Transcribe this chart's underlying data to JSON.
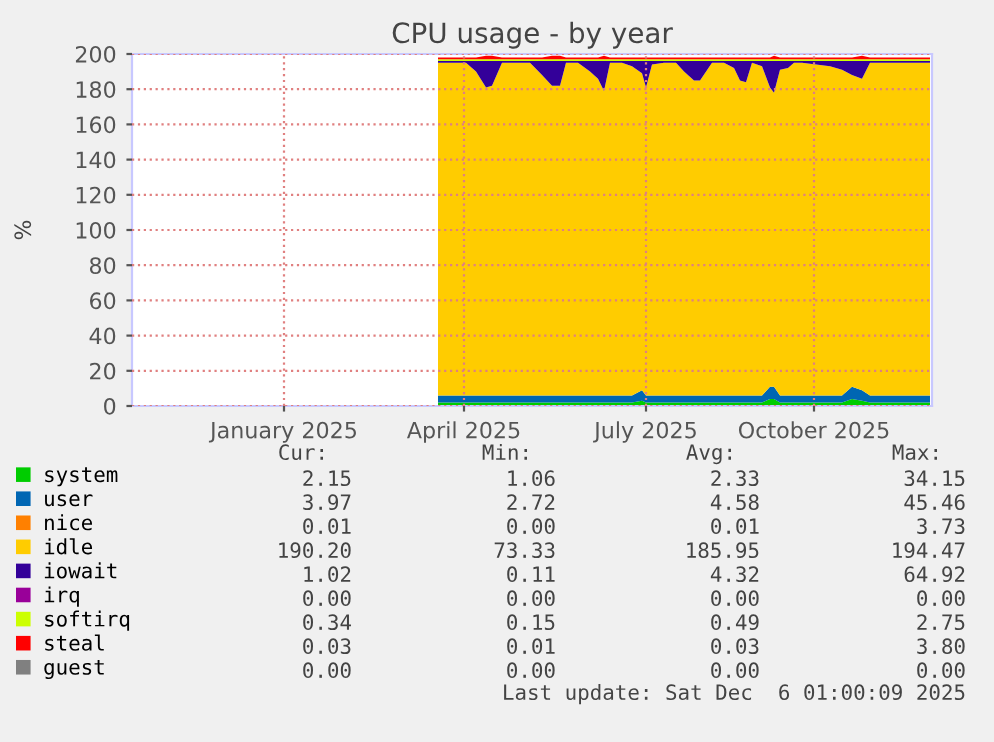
{
  "chart_data": {
    "type": "area",
    "stacked": true,
    "title": "CPU usage - by year",
    "ylabel": "%",
    "x": [
      "2025-04-03",
      "2025-04-10",
      "2025-04-17",
      "2025-04-22",
      "2025-04-27",
      "2025-04-30",
      "2025-05-05",
      "2025-05-12",
      "2025-05-19",
      "2025-05-25",
      "2025-05-30",
      "2025-06-03",
      "2025-06-06",
      "2025-06-12",
      "2025-06-18",
      "2025-06-22",
      "2025-06-25",
      "2025-06-28",
      "2025-07-04",
      "2025-07-09",
      "2025-07-14",
      "2025-07-16",
      "2025-07-19",
      "2025-07-25",
      "2025-07-31",
      "2025-08-04",
      "2025-08-09",
      "2025-08-12",
      "2025-08-18",
      "2025-08-24",
      "2025-08-29",
      "2025-09-01",
      "2025-09-04",
      "2025-09-07",
      "2025-09-12",
      "2025-09-16",
      "2025-09-18",
      "2025-09-21",
      "2025-09-25",
      "2025-09-28",
      "2025-10-02",
      "2025-10-09",
      "2025-10-16",
      "2025-10-22",
      "2025-10-27",
      "2025-11-01",
      "2025-11-05",
      "2025-11-10",
      "2025-11-17",
      "2025-11-24",
      "2025-12-01",
      "2025-12-05"
    ],
    "series": [
      {
        "name": "system",
        "color": "#00cc00",
        "values": [
          2,
          2,
          2,
          2,
          2,
          2,
          2,
          2,
          2,
          2,
          2,
          2,
          2,
          2,
          2,
          2,
          2,
          2,
          2,
          2,
          3,
          2,
          2,
          2,
          2,
          2,
          2,
          2,
          2,
          2,
          2,
          2,
          2,
          2,
          2,
          4,
          4,
          2,
          2,
          2,
          2,
          2,
          2,
          2,
          4,
          3,
          2,
          2,
          2,
          2,
          2,
          2
        ]
      },
      {
        "name": "user",
        "color": "#0066b3",
        "values": [
          4,
          4,
          4,
          4,
          4,
          4,
          4,
          4,
          4,
          4,
          4,
          4,
          4,
          4,
          4,
          4,
          4,
          4,
          4,
          4,
          6,
          4,
          4,
          4,
          4,
          4,
          4,
          4,
          4,
          4,
          4,
          4,
          4,
          4,
          4,
          7,
          7,
          4,
          4,
          4,
          4,
          4,
          4,
          4,
          7,
          6,
          4,
          4,
          4,
          4,
          4,
          4
        ]
      },
      {
        "name": "nice",
        "color": "#ff8000",
        "values": [
          null,
          null,
          null,
          null,
          null,
          null,
          null,
          null,
          null,
          null,
          null,
          null,
          null,
          null,
          null,
          null,
          null,
          null,
          null,
          null,
          null,
          null,
          null,
          null,
          null,
          null,
          null,
          null,
          null,
          null,
          null,
          null,
          null,
          null,
          null,
          null,
          null,
          null,
          null,
          null,
          null,
          null,
          null,
          null,
          null,
          null,
          null,
          null,
          null,
          null,
          null,
          null
        ]
      },
      {
        "name": "idle",
        "color": "#ffcc00",
        "values": [
          189,
          189,
          189,
          184,
          175,
          176,
          189,
          189,
          189,
          182,
          176,
          176,
          189,
          189,
          184,
          180,
          173,
          189,
          189,
          187,
          180,
          175,
          188,
          189,
          189,
          184,
          179,
          179,
          189,
          189,
          186,
          179,
          178,
          189,
          187,
          170,
          167,
          185,
          186,
          189,
          189,
          188,
          187,
          185,
          177,
          177,
          189,
          189,
          189,
          189,
          189,
          189
        ]
      },
      {
        "name": "iowait",
        "color": "#330099",
        "values": [
          1,
          1,
          1,
          6,
          15,
          14,
          1,
          1,
          1,
          8,
          14,
          14,
          1,
          1,
          6,
          10,
          17,
          1,
          1,
          3,
          7,
          15,
          2,
          1,
          1,
          6,
          11,
          11,
          1,
          1,
          4,
          11,
          12,
          1,
          3,
          15,
          18,
          5,
          4,
          1,
          1,
          2,
          3,
          5,
          8,
          10,
          1,
          1,
          1,
          1,
          1,
          1
        ]
      },
      {
        "name": "irq",
        "color": "#990099",
        "values": [
          null,
          null,
          null,
          null,
          null,
          null,
          null,
          null,
          null,
          null,
          null,
          null,
          null,
          null,
          null,
          null,
          null,
          null,
          null,
          null,
          null,
          null,
          null,
          null,
          null,
          null,
          null,
          null,
          null,
          null,
          null,
          null,
          null,
          null,
          null,
          null,
          null,
          null,
          null,
          null,
          null,
          null,
          null,
          null,
          null,
          null,
          null,
          null,
          null,
          null,
          null,
          null
        ]
      },
      {
        "name": "softirq",
        "color": "#ccff00",
        "values": [
          1,
          1,
          1,
          1,
          1,
          1,
          1,
          1,
          1,
          1,
          1,
          1,
          1,
          1,
          1,
          1,
          1,
          1,
          1,
          1,
          1,
          1,
          1,
          1,
          1,
          1,
          1,
          1,
          1,
          1,
          1,
          1,
          1,
          1,
          1,
          1,
          1,
          1,
          1,
          1,
          1,
          1,
          1,
          1,
          1,
          1,
          1,
          1,
          1,
          1,
          1,
          1
        ]
      },
      {
        "name": "steal",
        "color": "#ff0000",
        "values": [
          1,
          1,
          1,
          1,
          2,
          2,
          1,
          1,
          1,
          1,
          2,
          2,
          1,
          1,
          1,
          1,
          2,
          1,
          1,
          1,
          1,
          1,
          1,
          1,
          1,
          1,
          1,
          1,
          1,
          1,
          1,
          1,
          1,
          1,
          1,
          1,
          2,
          1,
          1,
          1,
          1,
          1,
          1,
          1,
          1,
          2,
          1,
          1,
          1,
          1,
          1,
          1
        ]
      },
      {
        "name": "guest",
        "color": "#808080",
        "values": [
          null,
          null,
          null,
          null,
          null,
          null,
          null,
          null,
          null,
          null,
          null,
          null,
          null,
          null,
          null,
          null,
          null,
          null,
          null,
          null,
          null,
          null,
          null,
          null,
          null,
          null,
          null,
          null,
          null,
          null,
          null,
          null,
          null,
          null,
          null,
          null,
          null,
          null,
          null,
          null,
          null,
          null,
          null,
          null,
          null,
          null,
          null,
          null,
          null,
          null,
          null,
          null
        ]
      }
    ],
    "xlim": [
      "2024-11-01",
      "2025-12-06"
    ],
    "xticks": [
      {
        "value": "2025-01-16",
        "label": "January 2025"
      },
      {
        "value": "2025-04-16",
        "label": "April 2025"
      },
      {
        "value": "2025-07-16",
        "label": "July 2025"
      },
      {
        "value": "2025-10-08",
        "label": "October 2025"
      }
    ],
    "ylim": [
      0,
      200
    ],
    "yticks": [
      0,
      20,
      40,
      60,
      80,
      100,
      120,
      140,
      160,
      180,
      200
    ],
    "grid": true,
    "legend": "bottom",
    "annotations": [
      "Cur:",
      "Min:",
      "Avg:",
      "Max:",
      "2.15",
      "1.06",
      "2.33",
      "34.15",
      "3.97",
      "2.72",
      "4.58",
      "45.46",
      "0.01",
      "0.00",
      "0.01",
      "3.73",
      "190.20",
      "73.33",
      "185.95",
      "194.47",
      "1.02",
      "0.11",
      "4.32",
      "64.92",
      "0.00",
      "0.00",
      "0.00",
      "0.00",
      "0.34",
      "0.15",
      "0.49",
      "2.75",
      "0.03",
      "0.01",
      "0.03",
      "3.80",
      "0.00",
      "0.00",
      "0.00",
      "0.00",
      "Last update: Sat Dec  6 01:00:09 2025"
    ]
  }
}
